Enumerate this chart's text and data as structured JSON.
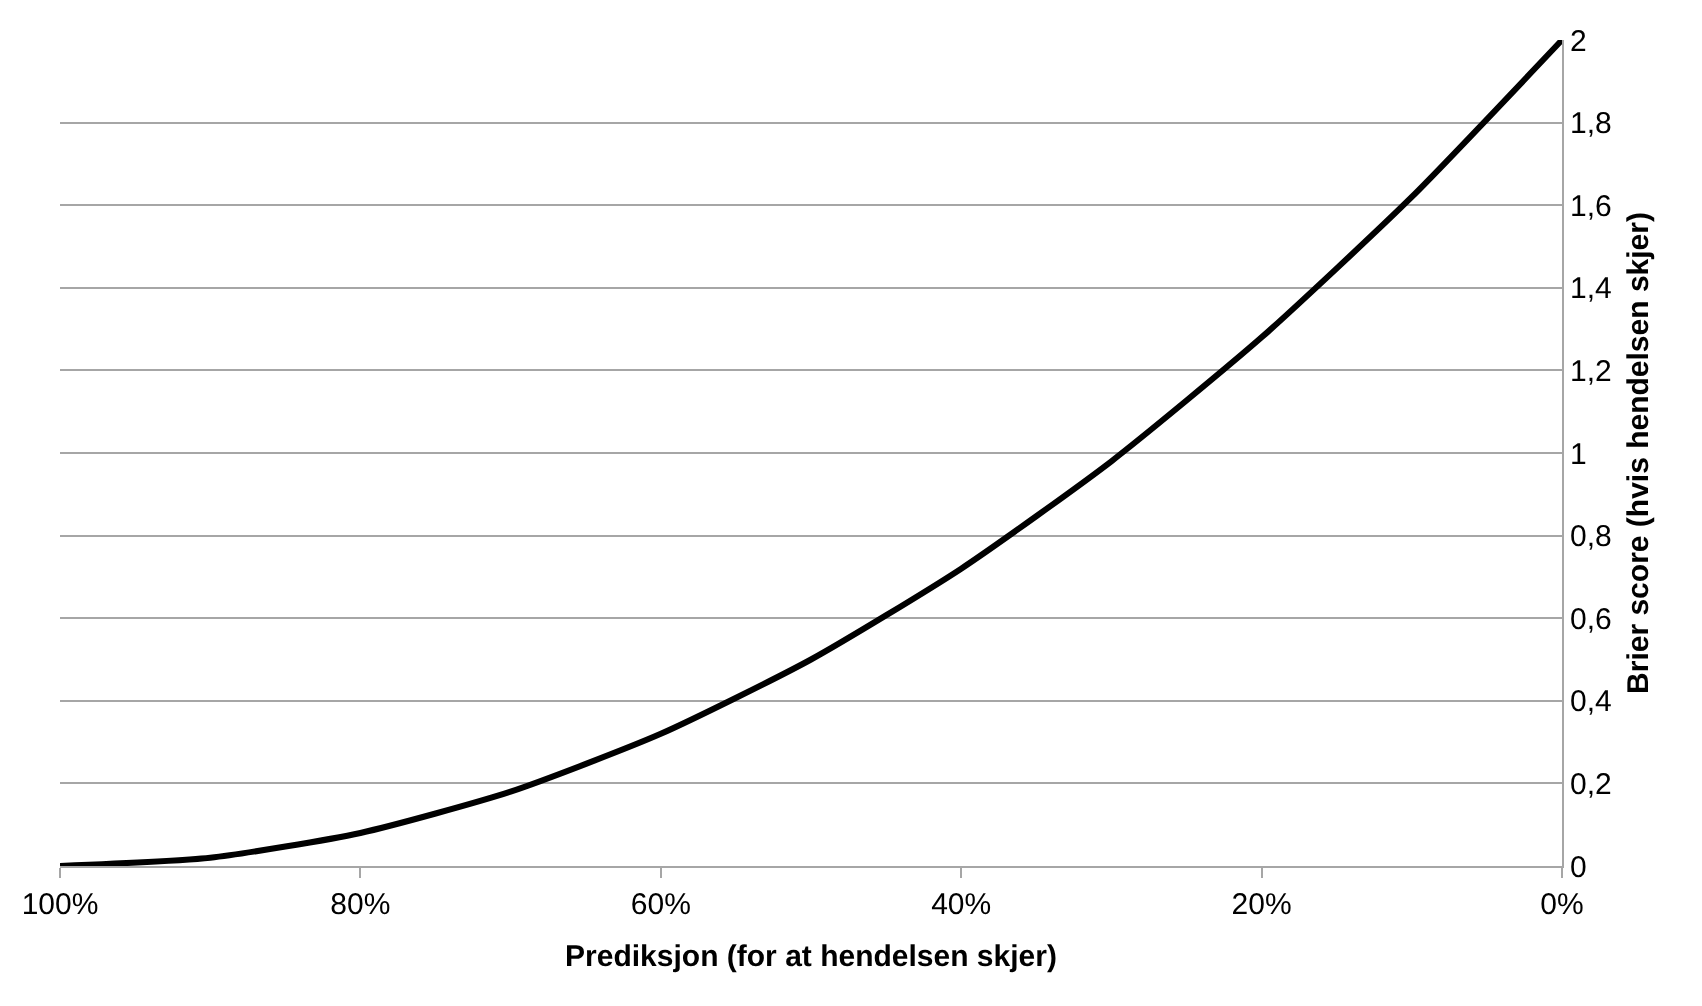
{
  "chart_data": {
    "type": "line",
    "xlabel": "Prediksjon (for at hendelsen skjer)",
    "ylabel": "Brier score (hvis hendelsen skjer)",
    "x": [
      100,
      90,
      80,
      70,
      60,
      50,
      40,
      30,
      20,
      10,
      0
    ],
    "series": [
      {
        "color": "#000000",
        "values": [
          0,
          0.02,
          0.08,
          0.18,
          0.32,
          0.5,
          0.72,
          0.98,
          1.28,
          1.62,
          2
        ]
      }
    ],
    "xlim": [
      100,
      0
    ],
    "xticks": [
      {
        "value": 100,
        "label": "100%"
      },
      {
        "value": 80,
        "label": "80%"
      },
      {
        "value": 60,
        "label": "60%"
      },
      {
        "value": 40,
        "label": "40%"
      },
      {
        "value": 20,
        "label": "20%"
      },
      {
        "value": 0,
        "label": "0%"
      }
    ],
    "ylim": [
      0,
      2
    ],
    "yticks": [
      0,
      {
        "value": 0.2,
        "label": "0,2"
      },
      {
        "value": 0.4,
        "label": "0,4"
      },
      {
        "value": 0.6,
        "label": "0,6"
      },
      {
        "value": 0.8,
        "label": "0,8"
      },
      1,
      {
        "value": 1.2,
        "label": "1,2"
      },
      {
        "value": 1.4,
        "label": "1,4"
      },
      {
        "value": 1.6,
        "label": "1,6"
      },
      {
        "value": 1.8,
        "label": "1,8"
      },
      2
    ],
    "grid": "y",
    "marker": "none",
    "line_style": "solid"
  }
}
